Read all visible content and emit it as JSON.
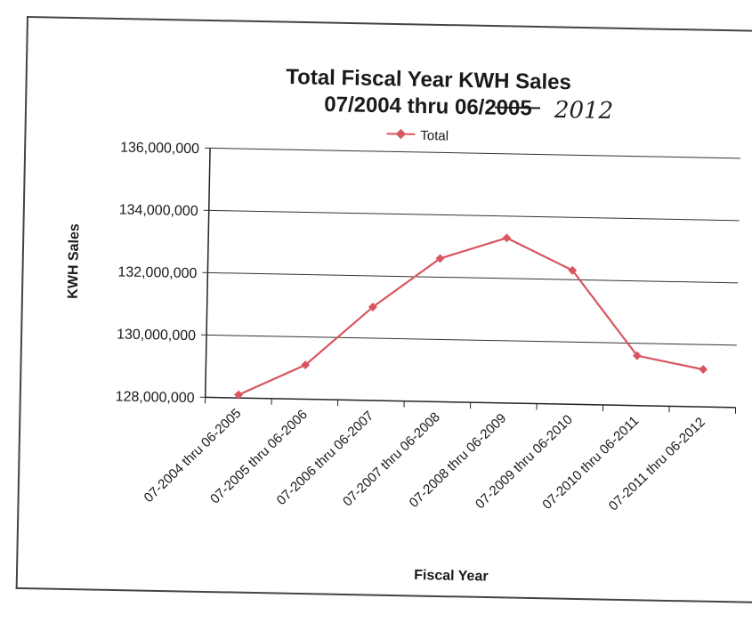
{
  "chart_data": {
    "type": "line",
    "title": "Total Fiscal Year KWH Sales",
    "subtitle_printed": "07/2004 thru 06/2005",
    "subtitle_struck": "2005",
    "subtitle_handwritten": "2012",
    "xlabel": "Fiscal Year",
    "ylabel": "KWH Sales",
    "ylim": [
      128000000,
      136000000
    ],
    "yticks": [
      "128,000,000",
      "130,000,000",
      "132,000,000",
      "134,000,000",
      "136,000,000"
    ],
    "grid": true,
    "legend_position": "top",
    "categories": [
      "07-2004 thru 06-2005",
      "07-2005 thru 06-2006",
      "07-2006 thru 06-2007",
      "07-2007 thru 06-2008",
      "07-2008 thru 06-2009",
      "07-2009 thru 06-2010",
      "07-2010 thru 06-2011",
      "07-2011 thru 06-2012"
    ],
    "series": [
      {
        "name": "Total",
        "color": "#d9555f",
        "values": [
          128100000,
          129100000,
          131000000,
          132600000,
          133300000,
          132300000,
          129600000,
          129200000
        ]
      }
    ]
  }
}
